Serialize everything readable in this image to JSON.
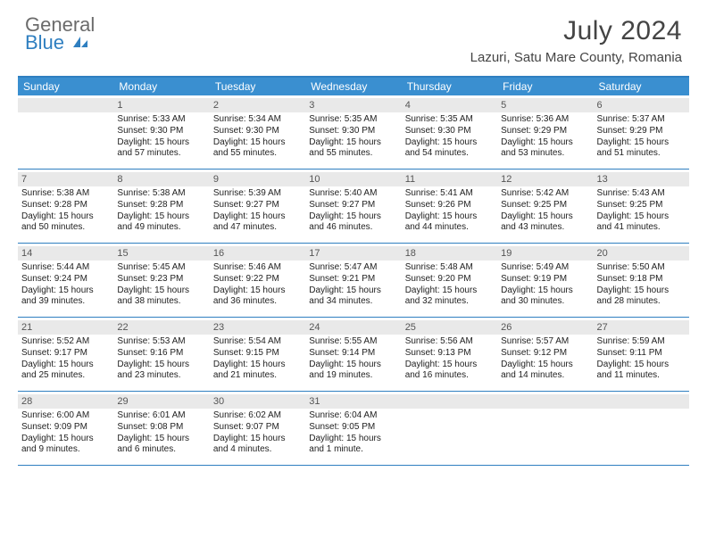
{
  "logo": {
    "line1": "General",
    "line2": "Blue"
  },
  "title": "July 2024",
  "location": "Lazuri, Satu Mare County, Romania",
  "colors": {
    "header_bg": "#3a8fd0",
    "border": "#2f7fc0",
    "daynum_bg": "#e9e9e9",
    "text": "#333333",
    "logo_gray": "#6b6b6b",
    "logo_blue": "#2f7fc0"
  },
  "day_names": [
    "Sunday",
    "Monday",
    "Tuesday",
    "Wednesday",
    "Thursday",
    "Friday",
    "Saturday"
  ],
  "weeks": [
    [
      {
        "n": "",
        "lines": []
      },
      {
        "n": "1",
        "lines": [
          "Sunrise: 5:33 AM",
          "Sunset: 9:30 PM",
          "Daylight: 15 hours",
          "and 57 minutes."
        ]
      },
      {
        "n": "2",
        "lines": [
          "Sunrise: 5:34 AM",
          "Sunset: 9:30 PM",
          "Daylight: 15 hours",
          "and 55 minutes."
        ]
      },
      {
        "n": "3",
        "lines": [
          "Sunrise: 5:35 AM",
          "Sunset: 9:30 PM",
          "Daylight: 15 hours",
          "and 55 minutes."
        ]
      },
      {
        "n": "4",
        "lines": [
          "Sunrise: 5:35 AM",
          "Sunset: 9:30 PM",
          "Daylight: 15 hours",
          "and 54 minutes."
        ]
      },
      {
        "n": "5",
        "lines": [
          "Sunrise: 5:36 AM",
          "Sunset: 9:29 PM",
          "Daylight: 15 hours",
          "and 53 minutes."
        ]
      },
      {
        "n": "6",
        "lines": [
          "Sunrise: 5:37 AM",
          "Sunset: 9:29 PM",
          "Daylight: 15 hours",
          "and 51 minutes."
        ]
      }
    ],
    [
      {
        "n": "7",
        "lines": [
          "Sunrise: 5:38 AM",
          "Sunset: 9:28 PM",
          "Daylight: 15 hours",
          "and 50 minutes."
        ]
      },
      {
        "n": "8",
        "lines": [
          "Sunrise: 5:38 AM",
          "Sunset: 9:28 PM",
          "Daylight: 15 hours",
          "and 49 minutes."
        ]
      },
      {
        "n": "9",
        "lines": [
          "Sunrise: 5:39 AM",
          "Sunset: 9:27 PM",
          "Daylight: 15 hours",
          "and 47 minutes."
        ]
      },
      {
        "n": "10",
        "lines": [
          "Sunrise: 5:40 AM",
          "Sunset: 9:27 PM",
          "Daylight: 15 hours",
          "and 46 minutes."
        ]
      },
      {
        "n": "11",
        "lines": [
          "Sunrise: 5:41 AM",
          "Sunset: 9:26 PM",
          "Daylight: 15 hours",
          "and 44 minutes."
        ]
      },
      {
        "n": "12",
        "lines": [
          "Sunrise: 5:42 AM",
          "Sunset: 9:25 PM",
          "Daylight: 15 hours",
          "and 43 minutes."
        ]
      },
      {
        "n": "13",
        "lines": [
          "Sunrise: 5:43 AM",
          "Sunset: 9:25 PM",
          "Daylight: 15 hours",
          "and 41 minutes."
        ]
      }
    ],
    [
      {
        "n": "14",
        "lines": [
          "Sunrise: 5:44 AM",
          "Sunset: 9:24 PM",
          "Daylight: 15 hours",
          "and 39 minutes."
        ]
      },
      {
        "n": "15",
        "lines": [
          "Sunrise: 5:45 AM",
          "Sunset: 9:23 PM",
          "Daylight: 15 hours",
          "and 38 minutes."
        ]
      },
      {
        "n": "16",
        "lines": [
          "Sunrise: 5:46 AM",
          "Sunset: 9:22 PM",
          "Daylight: 15 hours",
          "and 36 minutes."
        ]
      },
      {
        "n": "17",
        "lines": [
          "Sunrise: 5:47 AM",
          "Sunset: 9:21 PM",
          "Daylight: 15 hours",
          "and 34 minutes."
        ]
      },
      {
        "n": "18",
        "lines": [
          "Sunrise: 5:48 AM",
          "Sunset: 9:20 PM",
          "Daylight: 15 hours",
          "and 32 minutes."
        ]
      },
      {
        "n": "19",
        "lines": [
          "Sunrise: 5:49 AM",
          "Sunset: 9:19 PM",
          "Daylight: 15 hours",
          "and 30 minutes."
        ]
      },
      {
        "n": "20",
        "lines": [
          "Sunrise: 5:50 AM",
          "Sunset: 9:18 PM",
          "Daylight: 15 hours",
          "and 28 minutes."
        ]
      }
    ],
    [
      {
        "n": "21",
        "lines": [
          "Sunrise: 5:52 AM",
          "Sunset: 9:17 PM",
          "Daylight: 15 hours",
          "and 25 minutes."
        ]
      },
      {
        "n": "22",
        "lines": [
          "Sunrise: 5:53 AM",
          "Sunset: 9:16 PM",
          "Daylight: 15 hours",
          "and 23 minutes."
        ]
      },
      {
        "n": "23",
        "lines": [
          "Sunrise: 5:54 AM",
          "Sunset: 9:15 PM",
          "Daylight: 15 hours",
          "and 21 minutes."
        ]
      },
      {
        "n": "24",
        "lines": [
          "Sunrise: 5:55 AM",
          "Sunset: 9:14 PM",
          "Daylight: 15 hours",
          "and 19 minutes."
        ]
      },
      {
        "n": "25",
        "lines": [
          "Sunrise: 5:56 AM",
          "Sunset: 9:13 PM",
          "Daylight: 15 hours",
          "and 16 minutes."
        ]
      },
      {
        "n": "26",
        "lines": [
          "Sunrise: 5:57 AM",
          "Sunset: 9:12 PM",
          "Daylight: 15 hours",
          "and 14 minutes."
        ]
      },
      {
        "n": "27",
        "lines": [
          "Sunrise: 5:59 AM",
          "Sunset: 9:11 PM",
          "Daylight: 15 hours",
          "and 11 minutes."
        ]
      }
    ],
    [
      {
        "n": "28",
        "lines": [
          "Sunrise: 6:00 AM",
          "Sunset: 9:09 PM",
          "Daylight: 15 hours",
          "and 9 minutes."
        ]
      },
      {
        "n": "29",
        "lines": [
          "Sunrise: 6:01 AM",
          "Sunset: 9:08 PM",
          "Daylight: 15 hours",
          "and 6 minutes."
        ]
      },
      {
        "n": "30",
        "lines": [
          "Sunrise: 6:02 AM",
          "Sunset: 9:07 PM",
          "Daylight: 15 hours",
          "and 4 minutes."
        ]
      },
      {
        "n": "31",
        "lines": [
          "Sunrise: 6:04 AM",
          "Sunset: 9:05 PM",
          "Daylight: 15 hours",
          "and 1 minute."
        ]
      },
      {
        "n": "",
        "lines": []
      },
      {
        "n": "",
        "lines": []
      },
      {
        "n": "",
        "lines": []
      }
    ]
  ]
}
